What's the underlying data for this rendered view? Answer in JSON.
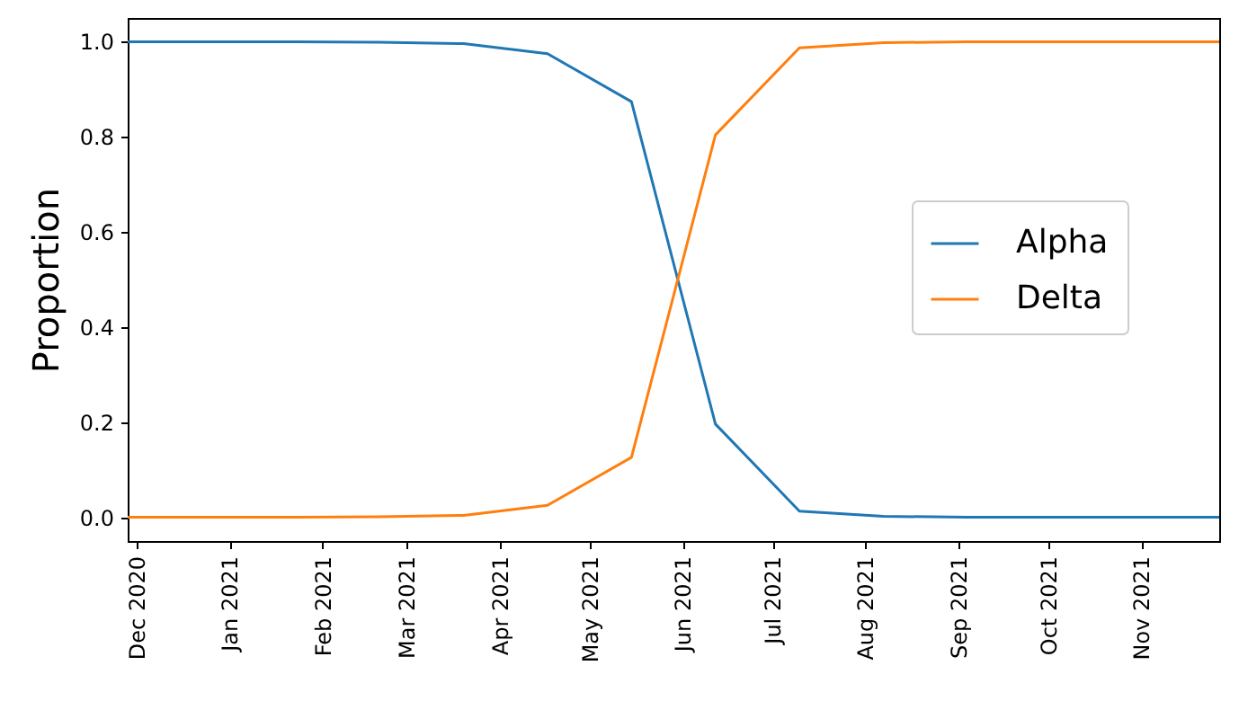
{
  "chart_data": {
    "type": "line",
    "ylabel": "Proportion",
    "x": [
      "2020-11-28",
      "2020-12-26",
      "2021-01-23",
      "2021-02-20",
      "2021-03-20",
      "2021-04-17",
      "2021-05-15",
      "2021-06-12",
      "2021-07-10",
      "2021-08-07",
      "2021-09-04",
      "2021-10-02",
      "2021-10-30",
      "2021-11-27"
    ],
    "series": [
      {
        "name": "Alpha",
        "color": "#1f77b4",
        "values": [
          1,
          1,
          1,
          0.999,
          0.996,
          0.975,
          0.874,
          0.196,
          0.013,
          0.002,
          0,
          0,
          0,
          0
        ]
      },
      {
        "name": "Delta",
        "color": "#ff7f0e",
        "values": [
          0,
          0,
          0,
          0.001,
          0.004,
          0.025,
          0.126,
          0.804,
          0.987,
          0.998,
          1,
          1,
          1,
          1
        ]
      }
    ],
    "xlim": [
      "2020-11-28",
      "2021-11-27"
    ],
    "xticks": [
      {
        "value": "2020-12-01",
        "label": "Dec 2020"
      },
      {
        "value": "2021-01-01",
        "label": "Jan 2021"
      },
      {
        "value": "2021-02-01",
        "label": "Feb 2021"
      },
      {
        "value": "2021-03-01",
        "label": "Mar 2021"
      },
      {
        "value": "2021-04-01",
        "label": "Apr 2021"
      },
      {
        "value": "2021-05-01",
        "label": "May 2021"
      },
      {
        "value": "2021-06-01",
        "label": "Jun 2021"
      },
      {
        "value": "2021-07-01",
        "label": "Jul 2021"
      },
      {
        "value": "2021-08-01",
        "label": "Aug 2021"
      },
      {
        "value": "2021-09-01",
        "label": "Sep 2021"
      },
      {
        "value": "2021-10-01",
        "label": "Oct 2021"
      },
      {
        "value": "2021-11-01",
        "label": "Nov 2021"
      }
    ],
    "ylim": [
      -0.05,
      1.05
    ],
    "yticks": [
      {
        "value": 0,
        "label": "0.0"
      },
      {
        "value": 0.2,
        "label": "0.2"
      },
      {
        "value": 0.4,
        "label": "0.4"
      },
      {
        "value": 0.6,
        "label": "0.6"
      },
      {
        "value": 0.8,
        "label": "0.8"
      },
      {
        "value": 1,
        "label": "1.0"
      }
    ],
    "legend": "right",
    "grid": false
  }
}
